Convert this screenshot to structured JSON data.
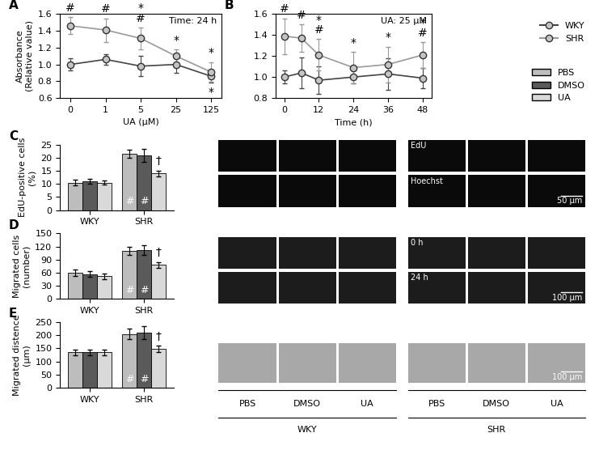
{
  "chart_data": [
    {
      "label": "A",
      "type": "line",
      "annotation": "Time: 24 h",
      "xlabel": "UA (μM)",
      "ylabel": "Absorbance\n(Relative value)",
      "categories": [
        "0",
        "1",
        "5",
        "25",
        "125"
      ],
      "ylim": [
        0.6,
        1.6
      ],
      "yticks": [
        0.6,
        0.8,
        1.0,
        1.2,
        1.4,
        1.6
      ],
      "legend": "upper right",
      "series": [
        {
          "name": "WKY",
          "color": "#444444",
          "marker": "o",
          "values": [
            1.0,
            1.06,
            0.98,
            1.0,
            0.86
          ],
          "errors": [
            0.07,
            0.06,
            0.12,
            0.1,
            0.08
          ],
          "marks_above": [
            [],
            [],
            [],
            [],
            []
          ],
          "marks_below": [
            [],
            [],
            [],
            [],
            [
              "*"
            ]
          ]
        },
        {
          "name": "SHR",
          "color": "#999999",
          "marker": "o",
          "values": [
            1.46,
            1.41,
            1.31,
            1.1,
            0.91
          ],
          "errors": [
            0.1,
            0.14,
            0.13,
            0.08,
            0.12
          ],
          "marks_above": [
            [
              "#"
            ],
            [
              "#"
            ],
            [
              "*",
              "#"
            ],
            [
              "*"
            ],
            [
              "*"
            ]
          ],
          "marks_below": [
            [],
            [],
            [],
            [],
            []
          ]
        }
      ]
    },
    {
      "label": "B",
      "type": "line",
      "annotation": "UA: 25 μM",
      "xlabel": "Time (h)",
      "x": [
        0,
        6,
        12,
        24,
        36,
        48
      ],
      "xlim": [
        -3,
        51
      ],
      "xticks": [
        0,
        12,
        24,
        36,
        48
      ],
      "ylim": [
        0.8,
        1.6
      ],
      "yticks": [
        0.8,
        1.0,
        1.2,
        1.4,
        1.6
      ],
      "series": [
        {
          "name": "WKY",
          "color": "#444444",
          "marker": "o",
          "values": [
            1.0,
            1.04,
            0.97,
            1.0,
            1.03,
            0.99
          ],
          "errors": [
            0.06,
            0.15,
            0.13,
            0.06,
            0.15,
            0.1
          ],
          "marks_above": [
            [],
            [],
            [],
            [],
            [],
            []
          ],
          "marks_below": [
            [],
            [],
            [],
            [],
            [],
            []
          ]
        },
        {
          "name": "SHR",
          "color": "#999999",
          "marker": "o",
          "values": [
            1.39,
            1.37,
            1.21,
            1.09,
            1.12,
            1.21
          ],
          "errors": [
            0.17,
            0.13,
            0.15,
            0.15,
            0.17,
            0.12
          ],
          "marks_above": [
            [
              "#"
            ],
            [
              "#"
            ],
            [
              "*",
              "#"
            ],
            [
              "*"
            ],
            [
              "*"
            ],
            [
              "*",
              "#"
            ]
          ],
          "marks_below": [
            [],
            [],
            [],
            [],
            [],
            []
          ]
        }
      ]
    },
    {
      "label": "C",
      "type": "bar",
      "ylabel": "EdU-positive cells\n(%)",
      "categories": [
        "WKY",
        "SHR"
      ],
      "ylim": [
        0,
        25
      ],
      "yticks": [
        0,
        5,
        10,
        15,
        20,
        25
      ],
      "legend": "upper right",
      "series": [
        {
          "name": "PBS",
          "color": "#bdbdbd",
          "values": [
            10.5,
            21.5
          ],
          "errors": [
            1.0,
            1.5
          ],
          "inner_marks": [
            [],
            [
              "#"
            ]
          ],
          "top_marks": [
            [],
            []
          ]
        },
        {
          "name": "DMSO",
          "color": "#5a5a5a",
          "values": [
            11.0,
            21.0
          ],
          "errors": [
            1.0,
            2.5
          ],
          "inner_marks": [
            [],
            [
              "#"
            ]
          ],
          "top_marks": [
            [],
            []
          ]
        },
        {
          "name": "UA",
          "color": "#d9d9d9",
          "values": [
            10.5,
            14.0
          ],
          "errors": [
            0.8,
            1.2
          ],
          "inner_marks": [
            [],
            []
          ],
          "top_marks": [
            [],
            [
              "†"
            ]
          ]
        }
      ]
    },
    {
      "label": "D",
      "type": "bar",
      "ylabel": "Migrated cells\n(number)",
      "categories": [
        "WKY",
        "SHR"
      ],
      "ylim": [
        0,
        150
      ],
      "yticks": [
        0,
        30,
        60,
        90,
        120,
        150
      ],
      "series": [
        {
          "name": "PBS",
          "color": "#bdbdbd",
          "values": [
            60,
            110
          ],
          "errors": [
            7,
            10
          ],
          "inner_marks": [
            [],
            [
              "#"
            ]
          ],
          "top_marks": [
            [],
            []
          ]
        },
        {
          "name": "DMSO",
          "color": "#5a5a5a",
          "values": [
            57,
            112
          ],
          "errors": [
            6,
            12
          ],
          "inner_marks": [
            [],
            [
              "#"
            ]
          ],
          "top_marks": [
            [],
            []
          ]
        },
        {
          "name": "UA",
          "color": "#d9d9d9",
          "values": [
            52,
            78
          ],
          "errors": [
            6,
            7
          ],
          "inner_marks": [
            [],
            []
          ],
          "top_marks": [
            [],
            [
              "†"
            ]
          ]
        }
      ]
    },
    {
      "label": "E",
      "type": "bar",
      "ylabel": "Migrated distence\n(μm)",
      "categories": [
        "WKY",
        "SHR"
      ],
      "ylim": [
        0,
        250
      ],
      "yticks": [
        0,
        50,
        100,
        150,
        200,
        250
      ],
      "series": [
        {
          "name": "PBS",
          "color": "#bdbdbd",
          "values": [
            135,
            205
          ],
          "errors": [
            10,
            20
          ],
          "inner_marks": [
            [],
            [
              "#"
            ]
          ],
          "top_marks": [
            [],
            []
          ]
        },
        {
          "name": "DMSO",
          "color": "#5a5a5a",
          "values": [
            135,
            210
          ],
          "errors": [
            10,
            25
          ],
          "inner_marks": [
            [],
            [
              "#"
            ]
          ],
          "top_marks": [
            [],
            []
          ]
        },
        {
          "name": "UA",
          "color": "#d9d9d9",
          "values": [
            135,
            148
          ],
          "errors": [
            10,
            12
          ],
          "inner_marks": [
            [],
            []
          ],
          "top_marks": [
            [],
            [
              "†"
            ]
          ]
        }
      ]
    }
  ],
  "image_panels": {
    "treatments": [
      "PBS",
      "DMSO",
      "UA"
    ],
    "groups": [
      "WKY",
      "SHR"
    ],
    "rows": [
      {
        "labels": [
          "EdU",
          "Hoechst"
        ],
        "scale_bar": "50 μm"
      },
      {
        "labels": [
          "0 h",
          "24 h"
        ],
        "scale_bar": "100 μm"
      },
      {
        "labels": [],
        "scale_bar": "100 μm"
      }
    ]
  }
}
